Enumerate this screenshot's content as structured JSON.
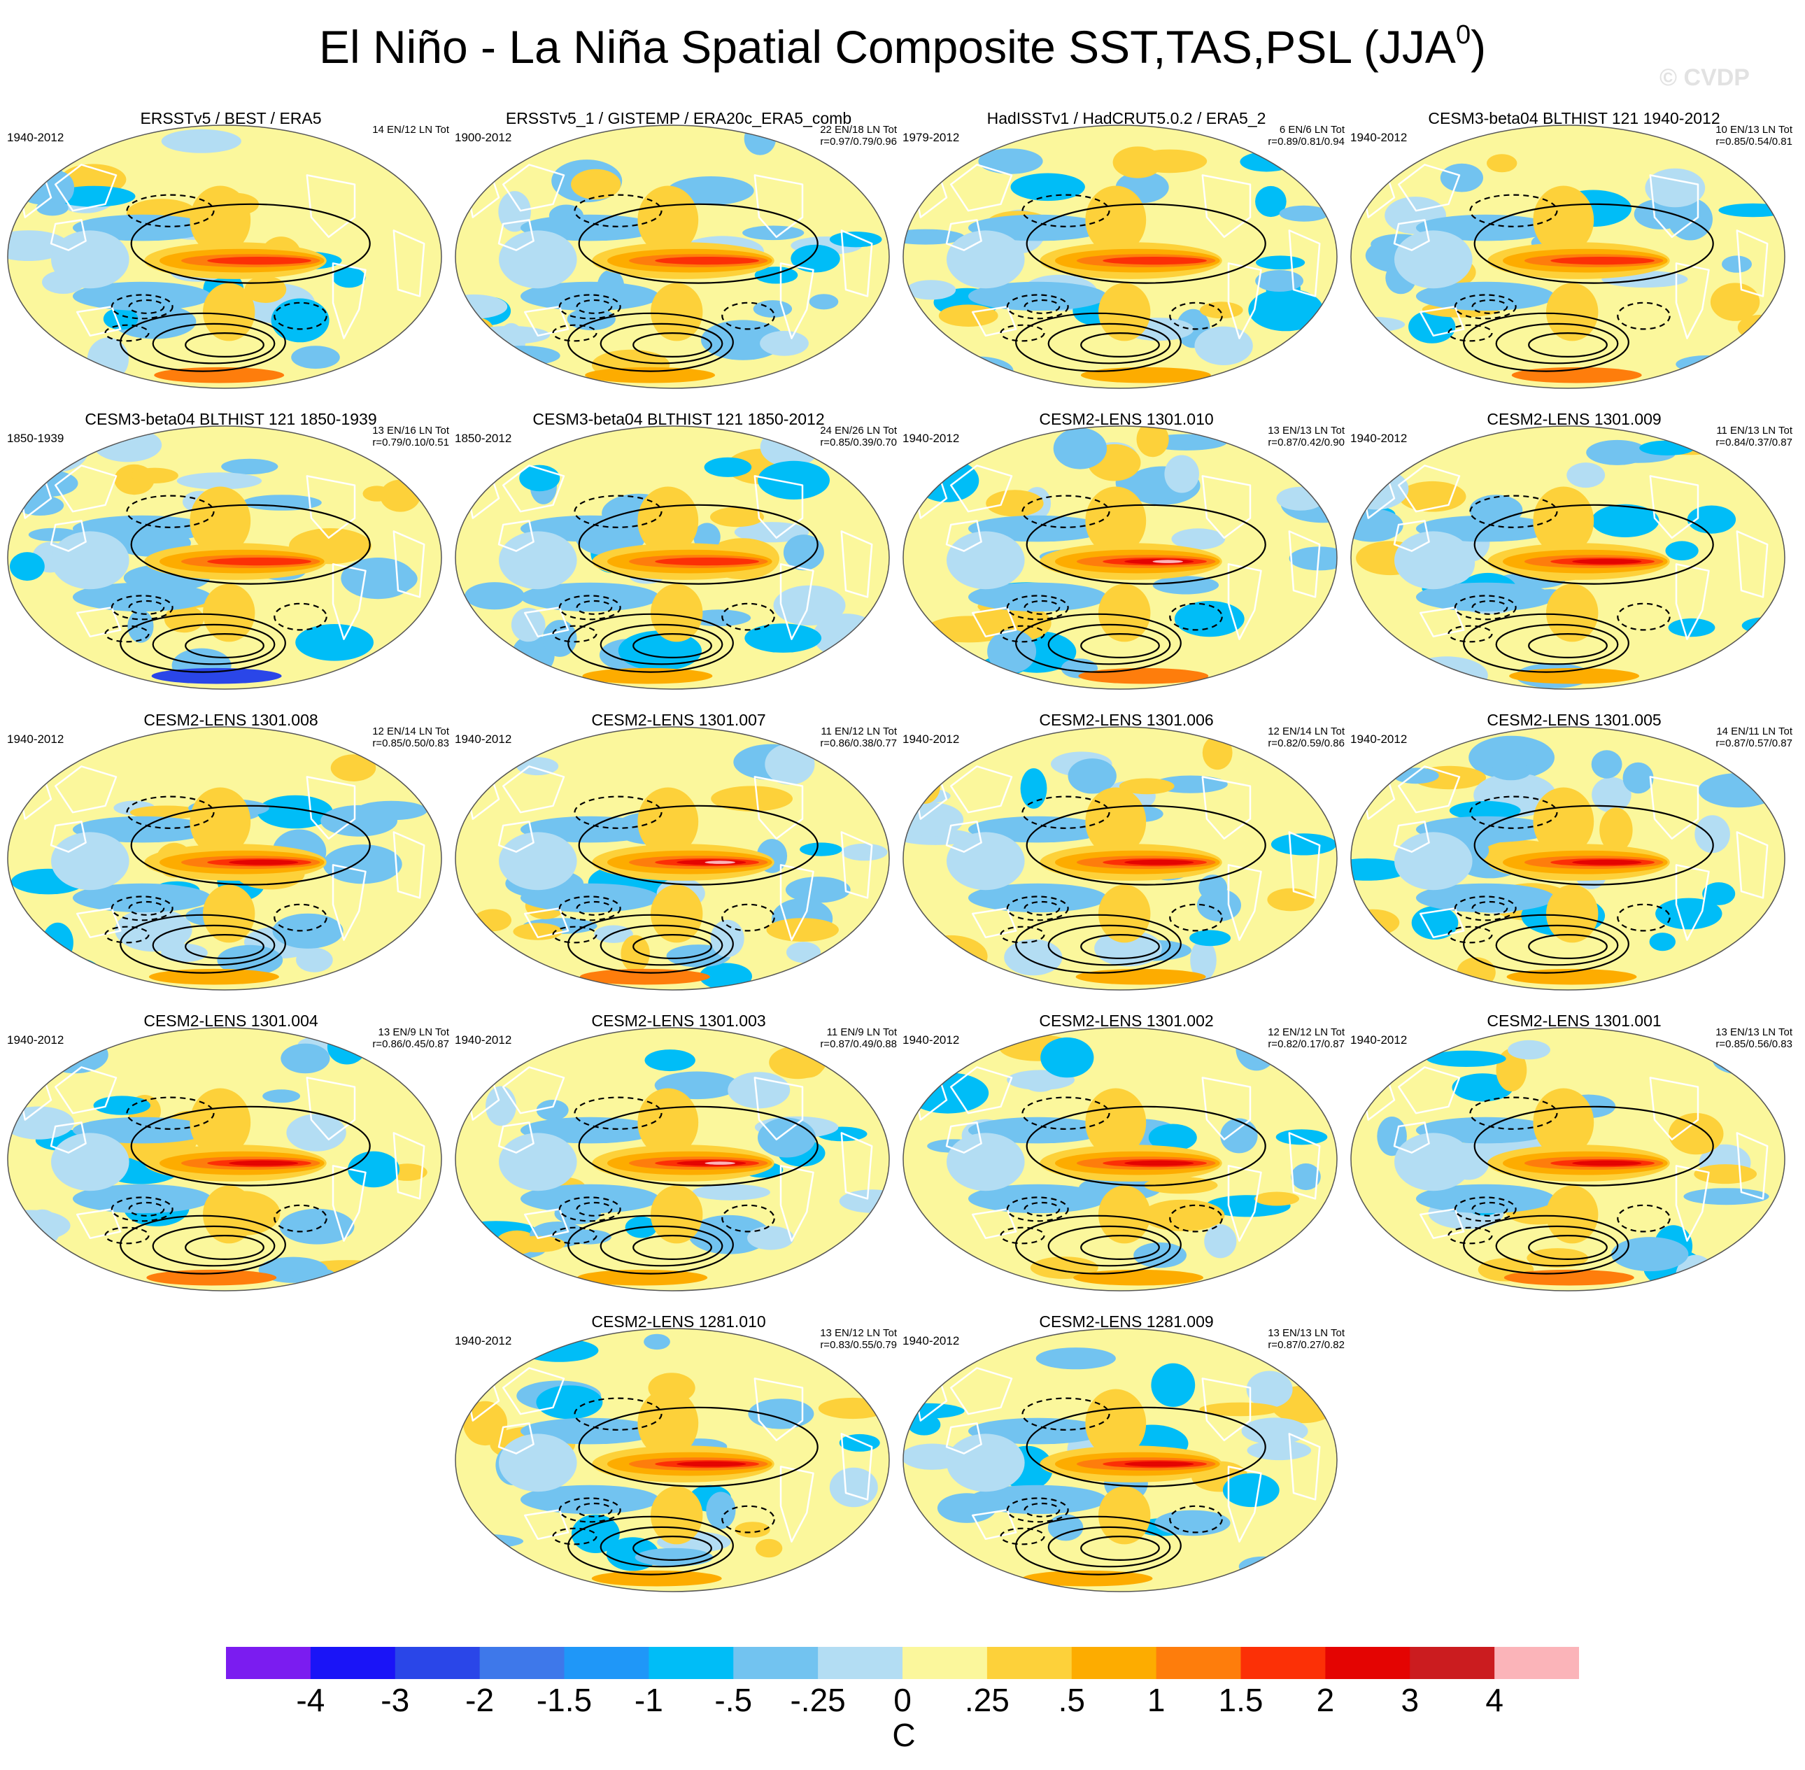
{
  "title": "El Niño - La Niña Spatial Composite SST,TAS,PSL (JJA",
  "title_superscript": "0",
  "title_suffix": ")",
  "watermark": "© CVDP",
  "panels": [
    {
      "title": "ERSSTv5 / BEST / ERA5",
      "years": "1940-2012",
      "counts": "14 EN/12 LN Tot",
      "corr": ""
    },
    {
      "title": "ERSSTv5_1 / GISTEMP / ERA20c_ERA5_comb",
      "years": "1900-2012",
      "counts": "22 EN/18 LN Tot",
      "corr": "r=0.97/0.79/0.96"
    },
    {
      "title": "HadISSTv1 / HadCRUT5.0.2 / ERA5_2",
      "years": "1979-2012",
      "counts": "6 EN/6 LN Tot",
      "corr": "r=0.89/0.81/0.94"
    },
    {
      "title": "CESM3-beta04 BLTHIST 121 1940-2012",
      "years": "1940-2012",
      "counts": "10 EN/13 LN Tot",
      "corr": "r=0.85/0.54/0.81"
    },
    {
      "title": "CESM3-beta04 BLTHIST 121 1850-1939",
      "years": "1850-1939",
      "counts": "13 EN/16 LN Tot",
      "corr": "r=0.79/0.10/0.51"
    },
    {
      "title": "CESM3-beta04 BLTHIST 121 1850-2012",
      "years": "1850-2012",
      "counts": "24 EN/26 LN Tot",
      "corr": "r=0.85/0.39/0.70"
    },
    {
      "title": "CESM2-LENS 1301.010",
      "years": "1940-2012",
      "counts": "13 EN/13 LN Tot",
      "corr": "r=0.87/0.42/0.90"
    },
    {
      "title": "CESM2-LENS 1301.009",
      "years": "1940-2012",
      "counts": "11 EN/13 LN Tot",
      "corr": "r=0.84/0.37/0.87"
    },
    {
      "title": "CESM2-LENS 1301.008",
      "years": "1940-2012",
      "counts": "12 EN/14 LN Tot",
      "corr": "r=0.85/0.50/0.83"
    },
    {
      "title": "CESM2-LENS 1301.007",
      "years": "1940-2012",
      "counts": "11 EN/12 LN Tot",
      "corr": "r=0.86/0.38/0.77"
    },
    {
      "title": "CESM2-LENS 1301.006",
      "years": "1940-2012",
      "counts": "12 EN/14 LN Tot",
      "corr": "r=0.82/0.59/0.86"
    },
    {
      "title": "CESM2-LENS 1301.005",
      "years": "1940-2012",
      "counts": "14 EN/11 LN Tot",
      "corr": "r=0.87/0.57/0.87"
    },
    {
      "title": "CESM2-LENS 1301.004",
      "years": "1940-2012",
      "counts": "13 EN/9 LN Tot",
      "corr": "r=0.86/0.45/0.87"
    },
    {
      "title": "CESM2-LENS 1301.003",
      "years": "1940-2012",
      "counts": "11 EN/9 LN Tot",
      "corr": "r=0.87/0.49/0.88"
    },
    {
      "title": "CESM2-LENS 1301.002",
      "years": "1940-2012",
      "counts": "12 EN/12 LN Tot",
      "corr": "r=0.82/0.17/0.87"
    },
    {
      "title": "CESM2-LENS 1301.001",
      "years": "1940-2012",
      "counts": "13 EN/13 LN Tot",
      "corr": "r=0.85/0.56/0.83"
    },
    {
      "title": "CESM2-LENS 1281.010",
      "years": "1940-2012",
      "counts": "13 EN/12 LN Tot",
      "corr": "r=0.83/0.55/0.79"
    },
    {
      "title": "CESM2-LENS 1281.009",
      "years": "1940-2012",
      "counts": "13 EN/13 LN Tot",
      "corr": "r=0.87/0.27/0.82"
    }
  ],
  "colorbar": {
    "unit": "C",
    "levels": [
      "-4",
      "-3",
      "-2",
      "-1.5",
      "-1",
      "-.5",
      "-.25",
      "0",
      ".25",
      ".5",
      "1",
      "1.5",
      "2",
      "3",
      "4"
    ],
    "colors": [
      "#7b1cf0",
      "#1a14f7",
      "#2a46e8",
      "#3e78ea",
      "#1f97f8",
      "#00bdf7",
      "#72c3f0",
      "#b3ddf3",
      "#fbf79c",
      "#fdd13a",
      "#fdac00",
      "#fe7d0c",
      "#fc3006",
      "#e40402",
      "#cb1c1f",
      "#fbb4b9"
    ]
  }
}
